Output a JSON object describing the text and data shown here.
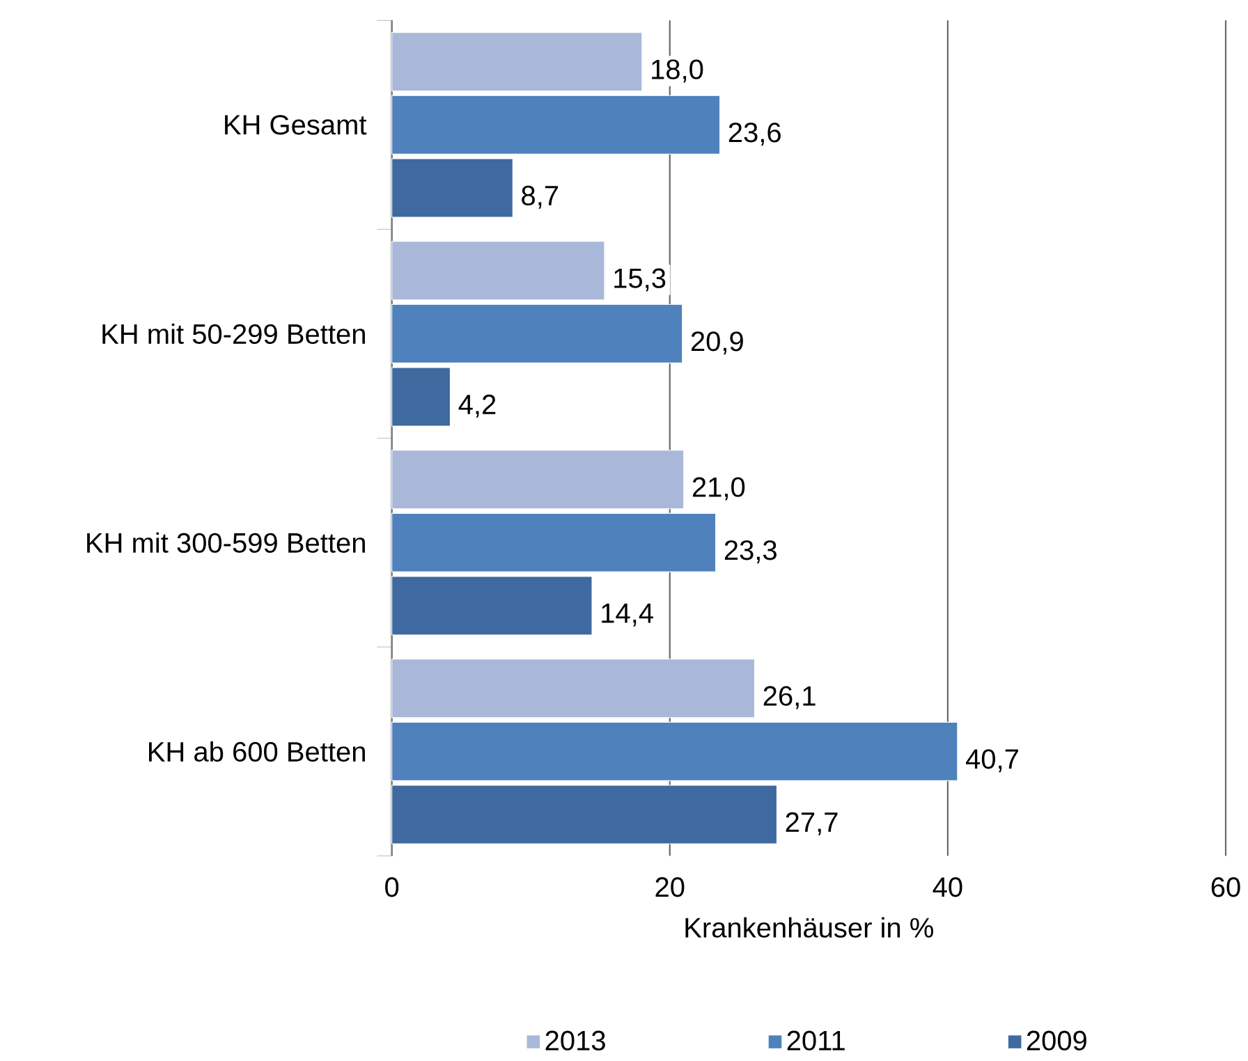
{
  "chart_data": {
    "type": "bar",
    "orientation": "horizontal",
    "xlabel": "Krankenhäuser in %",
    "categories": [
      "KH Gesamt",
      "KH mit  50-299 Betten",
      "KH mit  300-599 Betten",
      "KH ab  600 Betten"
    ],
    "series": [
      {
        "name": "2013",
        "color": "#a9b8d8",
        "values": [
          18.0,
          15.3,
          21.0,
          26.1
        ],
        "value_labels": [
          "18,0",
          "15,3",
          "21,0",
          "26,1"
        ]
      },
      {
        "name": "2011",
        "color": "#4f81bd",
        "values": [
          23.6,
          20.9,
          23.3,
          40.7
        ],
        "value_labels": [
          "23,6",
          "20,9",
          "23,3",
          "40,7"
        ]
      },
      {
        "name": "2009",
        "color": "#3e6aa0",
        "values": [
          8.7,
          4.2,
          14.4,
          27.7
        ],
        "value_labels": [
          "8,7",
          "4,2",
          "14,4",
          "27,7"
        ]
      }
    ],
    "xlim": [
      0,
      60
    ],
    "xticks": [
      0,
      20,
      40,
      60
    ],
    "grid": "x",
    "legend": "bottom"
  }
}
